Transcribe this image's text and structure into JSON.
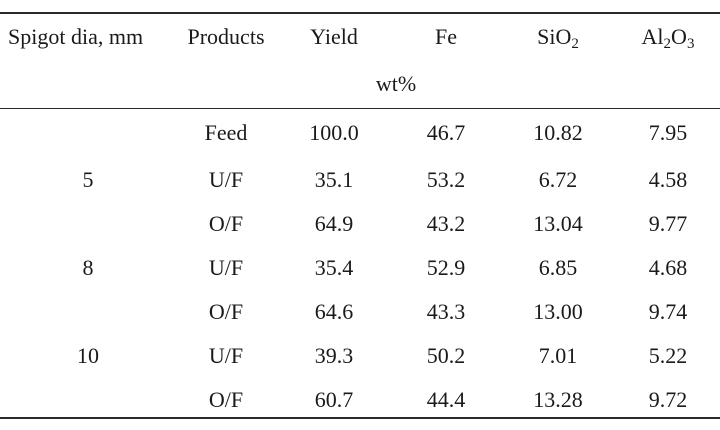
{
  "table": {
    "headers": {
      "spigot": "Spigot dia, mm",
      "products": "Products",
      "yield": "Yield",
      "fe": "Fe",
      "sio2": {
        "base": "SiO",
        "sub": "2"
      },
      "al2o3": {
        "base1": "Al",
        "sub1": "2",
        "base2": "O",
        "sub2": "3"
      }
    },
    "unit": "wt%",
    "rows": [
      {
        "spigot": "",
        "product": "Feed",
        "yield": "100.0",
        "fe": "46.7",
        "sio2": "10.82",
        "al2o3": "7.95"
      },
      {
        "spigot": "5",
        "product": "U/F",
        "yield": "35.1",
        "fe": "53.2",
        "sio2": "6.72",
        "al2o3": "4.58"
      },
      {
        "spigot": "",
        "product": "O/F",
        "yield": "64.9",
        "fe": "43.2",
        "sio2": "13.04",
        "al2o3": "9.77"
      },
      {
        "spigot": "8",
        "product": "U/F",
        "yield": "35.4",
        "fe": "52.9",
        "sio2": "6.85",
        "al2o3": "4.68"
      },
      {
        "spigot": "",
        "product": "O/F",
        "yield": "64.6",
        "fe": "43.3",
        "sio2": "13.00",
        "al2o3": "9.74"
      },
      {
        "spigot": "10",
        "product": "U/F",
        "yield": "39.3",
        "fe": "50.2",
        "sio2": "7.01",
        "al2o3": "5.22"
      },
      {
        "spigot": "",
        "product": "O/F",
        "yield": "60.7",
        "fe": "44.4",
        "sio2": "13.28",
        "al2o3": "9.72"
      }
    ]
  }
}
